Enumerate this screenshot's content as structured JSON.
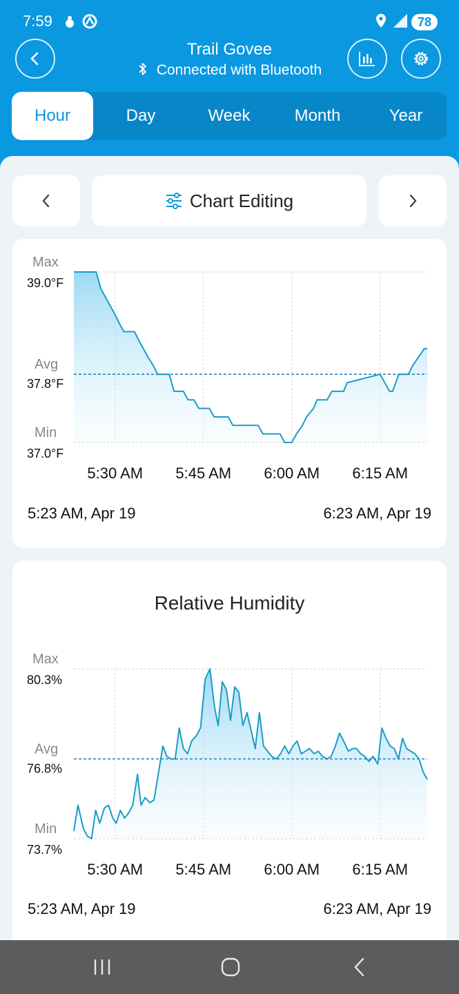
{
  "status_bar": {
    "time": "7:59",
    "battery": "78"
  },
  "header": {
    "title": "Trail Govee",
    "subtitle": "Connected with Bluetooth"
  },
  "tabs": [
    {
      "label": "Hour",
      "active": true
    },
    {
      "label": "Day",
      "active": false
    },
    {
      "label": "Week",
      "active": false
    },
    {
      "label": "Month",
      "active": false
    },
    {
      "label": "Year",
      "active": false
    }
  ],
  "toolbar": {
    "chart_editing_label": "Chart Editing"
  },
  "colors": {
    "accent": "#0a98e0",
    "line": "#1a9cc8",
    "avg": "#1a8ac0"
  },
  "chart_data": [
    {
      "type": "area",
      "title": "",
      "max_label": "Max",
      "max_value": "39.0°F",
      "avg_label": "Avg",
      "avg_value": "37.8°F",
      "min_label": "Min",
      "min_value": "37.0°F",
      "ylim": [
        37.0,
        39.0
      ],
      "avg": 37.8,
      "x_ticks": [
        "5:30 AM",
        "5:45 AM",
        "6:00 AM",
        "6:15 AM"
      ],
      "x_tick_minutes": [
        7,
        22,
        37,
        52
      ],
      "xlim_minutes": [
        0,
        60
      ],
      "start_label": "5:23 AM, Apr 19",
      "end_label": "6:23 AM, Apr 19",
      "x": [
        0,
        3.8,
        4.6,
        5.4,
        6.2,
        7,
        7.7,
        8.5,
        10.3,
        11,
        11.8,
        12.6,
        13.5,
        14.2,
        16.2,
        17,
        18.6,
        19.4,
        20.4,
        21.2,
        23,
        23.8,
        26.2,
        27,
        31.3,
        32.1,
        35,
        35.8,
        37,
        37.8,
        38.8,
        39.5,
        40.7,
        41.3,
        43,
        43.8,
        45.8,
        46.4,
        52,
        53.6,
        54.1,
        55.2,
        56.8,
        57.5,
        59.5,
        60
      ],
      "y": [
        39.0,
        39.0,
        38.8,
        38.7,
        38.6,
        38.5,
        38.4,
        38.3,
        38.3,
        38.2,
        38.1,
        38.0,
        37.9,
        37.8,
        37.8,
        37.6,
        37.6,
        37.5,
        37.5,
        37.4,
        37.4,
        37.3,
        37.3,
        37.2,
        37.2,
        37.1,
        37.1,
        37.0,
        37.0,
        37.1,
        37.2,
        37.3,
        37.4,
        37.5,
        37.5,
        37.6,
        37.6,
        37.7,
        37.8,
        37.6,
        37.6,
        37.8,
        37.8,
        37.9,
        38.1,
        38.1
      ]
    },
    {
      "type": "area",
      "title": "Relative Humidity",
      "max_label": "Max",
      "max_value": "80.3%",
      "avg_label": "Avg",
      "avg_value": "76.8%",
      "min_label": "Min",
      "min_value": "73.7%",
      "ylim": [
        73.7,
        80.3
      ],
      "avg": 76.8,
      "x_ticks": [
        "5:30 AM",
        "5:45 AM",
        "6:00 AM",
        "6:15 AM"
      ],
      "x_tick_minutes": [
        7,
        22,
        37,
        52
      ],
      "xlim_minutes": [
        0,
        60
      ],
      "start_label": "5:23 AM, Apr 19",
      "end_label": "6:23 AM, Apr 19",
      "x": [
        0,
        0.7,
        1.6,
        2.3,
        3,
        3.7,
        4.4,
        5.2,
        5.9,
        6.6,
        7.2,
        7.9,
        8.6,
        9.3,
        10,
        10.8,
        11.4,
        12.1,
        12.9,
        13.6,
        14.4,
        15.1,
        15.8,
        16.5,
        17.2,
        17.9,
        18.6,
        19.3,
        20,
        20.8,
        21.5,
        22.3,
        23.1,
        23.9,
        24.5,
        25.2,
        25.9,
        26.6,
        27.3,
        28,
        28.7,
        29.4,
        30.1,
        30.8,
        31.5,
        32.2,
        32.9,
        33.6,
        34.4,
        35.1,
        35.8,
        36.5,
        37.2,
        37.9,
        38.6,
        39.3,
        40,
        40.8,
        41.5,
        42.2,
        43,
        43.7,
        44.4,
        45.1,
        45.8,
        46.6,
        47.3,
        48,
        48.7,
        49.4,
        50.1,
        50.8,
        51.6,
        52.3,
        53,
        53.7,
        54.4,
        55.1,
        55.8,
        56.5,
        57.2,
        57.9,
        58.6,
        59.3,
        60
      ],
      "y": [
        74.0,
        75.0,
        74.1,
        73.8,
        73.7,
        74.8,
        74.3,
        74.9,
        75.0,
        74.5,
        74.3,
        74.8,
        74.5,
        74.7,
        75.0,
        76.2,
        75.0,
        75.3,
        75.1,
        75.2,
        76.3,
        77.3,
        76.9,
        76.8,
        76.8,
        78.0,
        77.2,
        77.0,
        77.5,
        77.7,
        78.0,
        79.9,
        80.3,
        78.8,
        78.1,
        79.8,
        79.5,
        78.3,
        79.6,
        79.4,
        78.1,
        78.6,
        77.9,
        77.2,
        78.6,
        77.3,
        77.1,
        76.9,
        76.8,
        77.0,
        77.3,
        77.0,
        77.3,
        77.5,
        77.0,
        77.1,
        77.2,
        77.0,
        77.1,
        76.9,
        76.8,
        76.9,
        77.3,
        77.8,
        77.5,
        77.1,
        77.2,
        77.2,
        77.0,
        76.9,
        76.7,
        76.9,
        76.6,
        78.0,
        77.6,
        77.3,
        77.2,
        76.8,
        77.6,
        77.2,
        77.1,
        77.0,
        76.8,
        76.3,
        76.0
      ]
    }
  ]
}
